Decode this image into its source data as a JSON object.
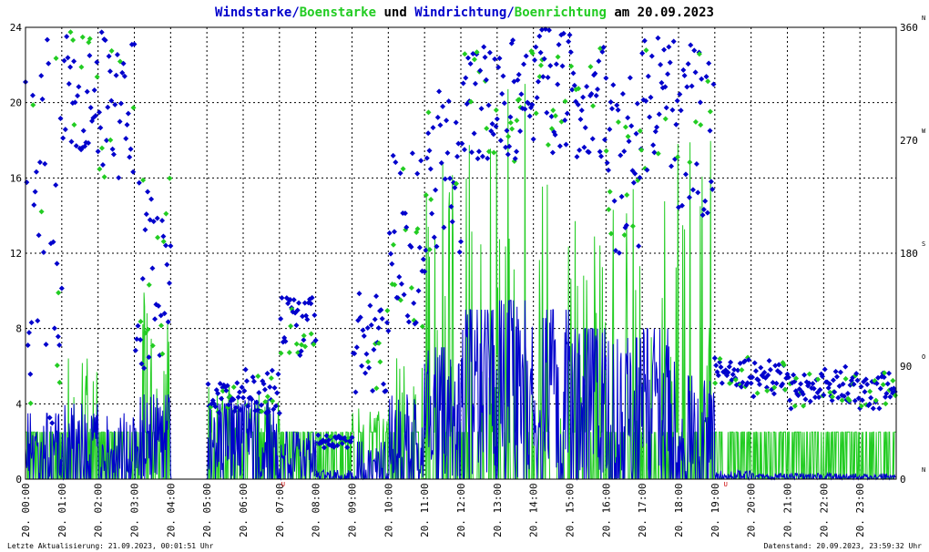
{
  "title_parts": [
    {
      "text": "Windstarke",
      "color": "#0000cc"
    },
    {
      "text": "/",
      "color": "#0000cc"
    },
    {
      "text": "Boenstarke",
      "color": "#22cc22"
    },
    {
      "text": " und ",
      "color": "#000000"
    },
    {
      "text": "Windrichtung",
      "color": "#0000cc"
    },
    {
      "text": "/",
      "color": "#0000cc"
    },
    {
      "text": "Boenrichtung",
      "color": "#22cc22"
    },
    {
      "text": " am 20.09.2023",
      "color": "#000000"
    }
  ],
  "footer": {
    "left": "Letzte Aktualisierung: 21.09.2023, 00:01:51 Uhr",
    "right": "Datenstand: 20.09.2023, 23:59:32 Uhr"
  },
  "colors": {
    "wind": "#0000cc",
    "gust": "#22cc22",
    "grid": "#000000",
    "marker": "#cc0000"
  },
  "chart_data": {
    "type": "line+scatter",
    "x_range_hours": [
      0,
      24
    ],
    "x_tick_labels": [
      "20. 00:00",
      "20. 01:00",
      "20. 02:00",
      "20. 03:00",
      "20. 04:00",
      "20. 05:00",
      "20. 06:00",
      "20. 07:00",
      "20. 08:00",
      "20. 09:00",
      "20. 10:00",
      "20. 11:00",
      "20. 12:00",
      "20. 13:00",
      "20. 14:00",
      "20. 15:00",
      "20. 16:00",
      "20. 17:00",
      "20. 18:00",
      "20. 19:00",
      "20. 20:00",
      "20. 21:00",
      "20. 22:00",
      "20. 23:00"
    ],
    "y_left": {
      "range": [
        0,
        24
      ],
      "ticks": [
        0,
        4,
        8,
        12,
        16,
        20,
        24
      ]
    },
    "y_right": {
      "range": [
        0,
        360
      ],
      "ticks": [
        0,
        90,
        180,
        270,
        360
      ],
      "direction_labels": [
        "N",
        "O",
        "S",
        "W",
        "N"
      ]
    },
    "grid": true,
    "hourly_summary": {
      "hours": [
        0,
        1,
        2,
        3,
        4,
        5,
        6,
        7,
        8,
        9,
        10,
        11,
        12,
        13,
        14,
        15,
        16,
        17,
        18,
        19,
        20,
        21,
        22,
        23
      ],
      "wind_mean": [
        1.0,
        1.2,
        1.0,
        1.3,
        0.0,
        1.8,
        1.6,
        1.2,
        0.1,
        0.5,
        1.2,
        2.5,
        3.5,
        3.8,
        3.6,
        3.0,
        2.8,
        3.0,
        1.5,
        0.1,
        0.1,
        0.1,
        0.1,
        0.1
      ],
      "wind_max": [
        3.5,
        4.0,
        3.5,
        4.5,
        0.0,
        4.0,
        4.2,
        2.5,
        0.5,
        2.0,
        4.5,
        7.0,
        9.0,
        9.5,
        9.0,
        8.0,
        7.5,
        8.0,
        5.5,
        0.5,
        0.3,
        0.3,
        0.3,
        0.3
      ],
      "gust_max": [
        2.5,
        6.5,
        2.5,
        10.0,
        0.0,
        5.0,
        4.5,
        2.5,
        2.5,
        4.0,
        7.0,
        18.5,
        20.0,
        21.5,
        20.0,
        14.5,
        16.0,
        19.5,
        19.0,
        2.5,
        2.5,
        2.5,
        2.5,
        2.5
      ],
      "direction_deg_center": [
        200,
        310,
        300,
        160,
        140,
        65,
        70,
        120,
        30,
        110,
        190,
        250,
        300,
        300,
        310,
        300,
        250,
        300,
        280,
        85,
        80,
        70,
        75,
        70
      ],
      "direction_deg_spread": [
        160,
        50,
        60,
        80,
        10,
        12,
        18,
        25,
        5,
        45,
        70,
        70,
        50,
        50,
        50,
        50,
        70,
        55,
        70,
        12,
        15,
        15,
        15,
        15
      ]
    }
  }
}
